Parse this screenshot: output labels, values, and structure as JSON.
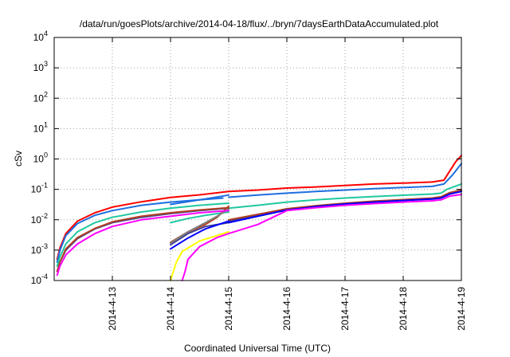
{
  "chart_data": {
    "type": "line",
    "title": "/data/run/goesPlots/archive/2014-04-18/flux/../bryn/7daysEarthDataAccumulated.plot",
    "xlabel": "Coordinated Universal Time (UTC)",
    "ylabel": "cSv",
    "yscale": "log",
    "xlim": [
      0,
      7
    ],
    "ylim": [
      0.0001,
      10000
    ],
    "xtick_values": [
      1,
      2,
      3,
      4,
      5,
      6,
      7
    ],
    "xtick_labels": [
      "2014-4-13",
      "2014-4-14",
      "2014-4-15",
      "2014-4-16",
      "2014-4-17",
      "2014-4-18",
      "2014-4-19"
    ],
    "ytick_values": [
      0.0001,
      0.001,
      0.01,
      0.1,
      1,
      10,
      100,
      1000,
      10000
    ],
    "ytick_base": "10",
    "ytick_exponents": [
      "-4",
      "-3",
      "-2",
      "-1",
      "0",
      "1",
      "2",
      "3",
      "4"
    ],
    "grid": true,
    "series": [
      {
        "color": "#ff0000",
        "segments": [
          [
            [
              0.05,
              0.0005
            ],
            [
              0.1,
              0.0012
            ],
            [
              0.2,
              0.0035
            ],
            [
              0.4,
              0.009
            ],
            [
              0.7,
              0.017
            ],
            [
              1.0,
              0.026
            ],
            [
              1.5,
              0.039
            ],
            [
              2.0,
              0.054
            ],
            [
              2.5,
              0.066
            ],
            [
              3.0,
              0.085
            ]
          ],
          [
            [
              3.0,
              0.085
            ],
            [
              3.5,
              0.095
            ],
            [
              4.0,
              0.11
            ],
            [
              4.5,
              0.12
            ],
            [
              5.0,
              0.135
            ],
            [
              5.5,
              0.15
            ],
            [
              6.0,
              0.16
            ],
            [
              6.5,
              0.175
            ],
            [
              6.7,
              0.2
            ],
            [
              6.8,
              0.4
            ],
            [
              6.9,
              0.8
            ],
            [
              7.0,
              1.3
            ]
          ]
        ]
      },
      {
        "color": "#1e6fe0",
        "segments": [
          [
            [
              0.05,
              0.0004
            ],
            [
              0.1,
              0.001
            ],
            [
              0.2,
              0.003
            ],
            [
              0.4,
              0.0075
            ],
            [
              0.7,
              0.014
            ],
            [
              1.0,
              0.02
            ],
            [
              1.5,
              0.03
            ],
            [
              2.0,
              0.038
            ],
            [
              2.5,
              0.045
            ],
            [
              2.9,
              0.052
            ]
          ],
          [
            [
              2.0,
              0.032
            ],
            [
              2.5,
              0.045
            ],
            [
              3.0,
              0.065
            ]
          ],
          [
            [
              3.0,
              0.055
            ],
            [
              3.5,
              0.065
            ],
            [
              4.0,
              0.075
            ],
            [
              4.5,
              0.085
            ],
            [
              5.0,
              0.095
            ],
            [
              5.5,
              0.105
            ],
            [
              6.0,
              0.115
            ],
            [
              6.5,
              0.125
            ],
            [
              6.7,
              0.15
            ],
            [
              6.85,
              0.3
            ],
            [
              7.0,
              0.7
            ]
          ]
        ]
      },
      {
        "color": "#20c8a0",
        "segments": [
          [
            [
              0.05,
              0.0003
            ],
            [
              0.1,
              0.0006
            ],
            [
              0.2,
              0.0016
            ],
            [
              0.4,
              0.004
            ],
            [
              0.7,
              0.008
            ],
            [
              1.0,
              0.012
            ],
            [
              1.5,
              0.018
            ],
            [
              2.0,
              0.024
            ],
            [
              2.5,
              0.03
            ],
            [
              3.0,
              0.035
            ]
          ],
          [
            [
              2.0,
              0.008
            ],
            [
              2.3,
              0.011
            ],
            [
              2.6,
              0.014
            ],
            [
              3.0,
              0.018
            ]
          ],
          [
            [
              3.0,
              0.024
            ],
            [
              3.5,
              0.03
            ],
            [
              4.0,
              0.038
            ],
            [
              4.5,
              0.045
            ],
            [
              5.0,
              0.052
            ],
            [
              5.5,
              0.058
            ],
            [
              6.0,
              0.064
            ],
            [
              6.5,
              0.07
            ],
            [
              6.65,
              0.075
            ],
            [
              6.75,
              0.1
            ],
            [
              7.0,
              0.15
            ]
          ]
        ]
      },
      {
        "color": "#404090",
        "segments": [
          [
            [
              0.05,
              0.0002
            ],
            [
              0.1,
              0.0004
            ],
            [
              0.2,
              0.001
            ],
            [
              0.4,
              0.0024
            ],
            [
              0.7,
              0.005
            ],
            [
              1.0,
              0.008
            ],
            [
              1.5,
              0.012
            ],
            [
              2.0,
              0.016
            ],
            [
              2.5,
              0.02
            ],
            [
              3.0,
              0.024
            ]
          ],
          [
            [
              2.0,
              0.0015
            ],
            [
              2.3,
              0.0035
            ],
            [
              2.6,
              0.006
            ],
            [
              3.0,
              0.008
            ]
          ],
          [
            [
              3.0,
              0.009
            ],
            [
              3.5,
              0.014
            ],
            [
              4.0,
              0.022
            ],
            [
              4.5,
              0.028
            ],
            [
              5.0,
              0.034
            ],
            [
              5.5,
              0.04
            ],
            [
              6.0,
              0.045
            ],
            [
              6.5,
              0.05
            ],
            [
              6.65,
              0.055
            ],
            [
              6.8,
              0.075
            ],
            [
              7.0,
              0.09
            ]
          ]
        ]
      },
      {
        "color": "#b04020",
        "segments": [
          [
            [
              0.05,
              0.0002
            ],
            [
              0.1,
              0.0004
            ],
            [
              0.2,
              0.0011
            ],
            [
              0.4,
              0.0026
            ],
            [
              0.7,
              0.0052
            ],
            [
              1.0,
              0.0085
            ],
            [
              1.5,
              0.013
            ],
            [
              2.0,
              0.017
            ],
            [
              2.5,
              0.021
            ],
            [
              3.0,
              0.025
            ]
          ],
          [
            [
              2.0,
              0.0018
            ],
            [
              2.3,
              0.004
            ],
            [
              2.6,
              0.007
            ],
            [
              2.8,
              0.012
            ],
            [
              3.0,
              0.028
            ]
          ],
          [
            [
              3.0,
              0.01
            ],
            [
              3.5,
              0.015
            ],
            [
              4.0,
              0.023
            ],
            [
              4.5,
              0.029
            ],
            [
              5.0,
              0.035
            ],
            [
              5.5,
              0.041
            ],
            [
              6.0,
              0.046
            ],
            [
              6.5,
              0.052
            ],
            [
              6.65,
              0.057
            ],
            [
              6.8,
              0.078
            ],
            [
              7.0,
              0.095
            ]
          ]
        ]
      },
      {
        "color": "#0000ff",
        "segments": [
          [
            [
              2.0,
              0.0011
            ],
            [
              2.3,
              0.0025
            ],
            [
              2.6,
              0.005
            ],
            [
              3.0,
              0.009
            ]
          ],
          [
            [
              3.0,
              0.008
            ],
            [
              3.5,
              0.013
            ],
            [
              4.0,
              0.021
            ],
            [
              4.5,
              0.027
            ],
            [
              5.0,
              0.033
            ],
            [
              5.5,
              0.038
            ],
            [
              6.0,
              0.043
            ],
            [
              6.5,
              0.048
            ],
            [
              6.65,
              0.052
            ],
            [
              6.8,
              0.07
            ],
            [
              7.0,
              0.085
            ]
          ]
        ]
      },
      {
        "color": "#808080",
        "segments": [
          [
            [
              2.0,
              0.0017
            ],
            [
              2.3,
              0.004
            ],
            [
              2.6,
              0.008
            ],
            [
              2.8,
              0.013
            ],
            [
              3.0,
              0.022
            ]
          ]
        ]
      },
      {
        "color": "#ffff00",
        "segments": [
          [
            [
              2.0,
              0.0001
            ],
            [
              2.05,
              0.0002
            ],
            [
              2.1,
              0.0004
            ],
            [
              2.2,
              0.0009
            ],
            [
              2.5,
              0.002
            ],
            [
              3.0,
              0.004
            ]
          ]
        ]
      },
      {
        "color": "#ff00ff",
        "segments": [
          [
            [
              0.05,
              0.00015
            ],
            [
              0.1,
              0.0003
            ],
            [
              0.2,
              0.0007
            ],
            [
              0.4,
              0.0016
            ],
            [
              0.7,
              0.0035
            ],
            [
              1.0,
              0.006
            ],
            [
              1.5,
              0.01
            ],
            [
              2.0,
              0.013
            ],
            [
              2.5,
              0.017
            ],
            [
              3.0,
              0.02
            ]
          ],
          [
            [
              2.2,
              0.0001
            ],
            [
              2.25,
              0.0002
            ],
            [
              2.3,
              0.0005
            ],
            [
              2.5,
              0.0013
            ],
            [
              2.8,
              0.0026
            ],
            [
              3.0,
              0.0035
            ],
            [
              3.5,
              0.007
            ],
            [
              4.0,
              0.02
            ],
            [
              4.5,
              0.025
            ],
            [
              5.0,
              0.03
            ],
            [
              5.5,
              0.034
            ],
            [
              6.0,
              0.038
            ],
            [
              6.5,
              0.042
            ],
            [
              6.65,
              0.045
            ],
            [
              6.8,
              0.06
            ],
            [
              7.0,
              0.068
            ]
          ]
        ]
      }
    ]
  }
}
